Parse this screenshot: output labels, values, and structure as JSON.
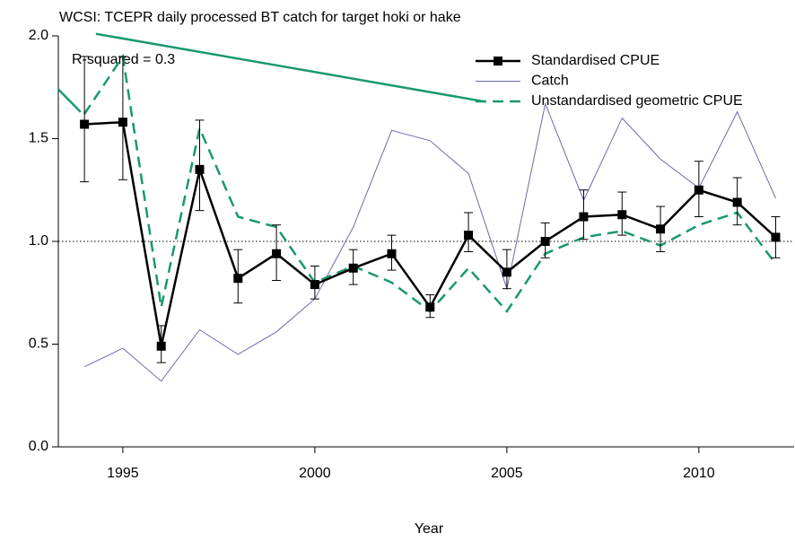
{
  "chart_data": {
    "type": "line",
    "title": "WCSI: TCEPR daily processed BT catch for target hoki or hake",
    "annotation": "R-squared = 0.3",
    "x_label": "Year",
    "x": [
      1994,
      1995,
      1996,
      1997,
      1998,
      1999,
      2000,
      2001,
      2002,
      2003,
      2004,
      2005,
      2006,
      2007,
      2008,
      2009,
      2010,
      2011,
      2012
    ],
    "series": [
      {
        "name": "Standardised CPUE",
        "color": "#000000",
        "style": "solid-markers",
        "values": [
          1.57,
          1.58,
          0.49,
          1.35,
          0.82,
          0.94,
          0.79,
          0.87,
          0.94,
          0.68,
          1.03,
          0.85,
          1.0,
          1.12,
          1.13,
          1.06,
          1.25,
          1.19,
          1.02
        ],
        "lower": [
          1.29,
          1.3,
          0.41,
          1.15,
          0.7,
          0.81,
          0.72,
          0.79,
          0.86,
          0.63,
          0.95,
          0.77,
          0.92,
          1.01,
          1.03,
          0.95,
          1.12,
          1.08,
          0.92
        ],
        "upper": [
          1.9,
          1.9,
          0.59,
          1.59,
          0.96,
          1.08,
          0.88,
          0.96,
          1.03,
          0.74,
          1.14,
          0.96,
          1.09,
          1.25,
          1.24,
          1.17,
          1.39,
          1.31,
          1.12
        ]
      },
      {
        "name": "Catch",
        "color": "#6a6aaa",
        "style": "thin",
        "values": [
          0.39,
          0.48,
          0.32,
          0.57,
          0.45,
          0.56,
          0.72,
          1.07,
          1.54,
          1.49,
          1.33,
          0.77,
          1.67,
          1.2,
          1.6,
          1.4,
          1.26,
          1.63,
          1.21
        ]
      },
      {
        "name": "Unstandardised geometric CPUE",
        "color": "#1a9870",
        "style": "dashed",
        "values": [
          1.62,
          1.9,
          0.68,
          1.55,
          1.12,
          1.07,
          0.8,
          0.88,
          0.8,
          0.66,
          0.87,
          0.66,
          0.94,
          1.02,
          1.05,
          0.98,
          1.08,
          1.14,
          0.89
        ]
      }
    ],
    "extra_lines": [
      {
        "color": "#1a9870",
        "x": [
          1993.32,
          1993.9
        ],
        "values": [
          1.74,
          1.63
        ]
      },
      {
        "color": "#1a9870",
        "x": [
          1994.3,
          2004.43
        ],
        "values": [
          2.01,
          1.68
        ]
      }
    ],
    "hline": 1.0,
    "xlim": [
      1993.32,
      2012.48
    ],
    "xticks": [
      1995,
      2000,
      2005,
      2010
    ],
    "ylim": [
      0,
      2
    ],
    "yticks": [
      {
        "value": 0,
        "label": "0.0"
      },
      {
        "value": 0.5,
        "label": "0.5"
      },
      {
        "value": 1,
        "label": "1.0"
      },
      {
        "value": 1.5,
        "label": "1.5"
      },
      {
        "value": 2,
        "label": "2.0"
      }
    ],
    "legend": "top-right"
  }
}
